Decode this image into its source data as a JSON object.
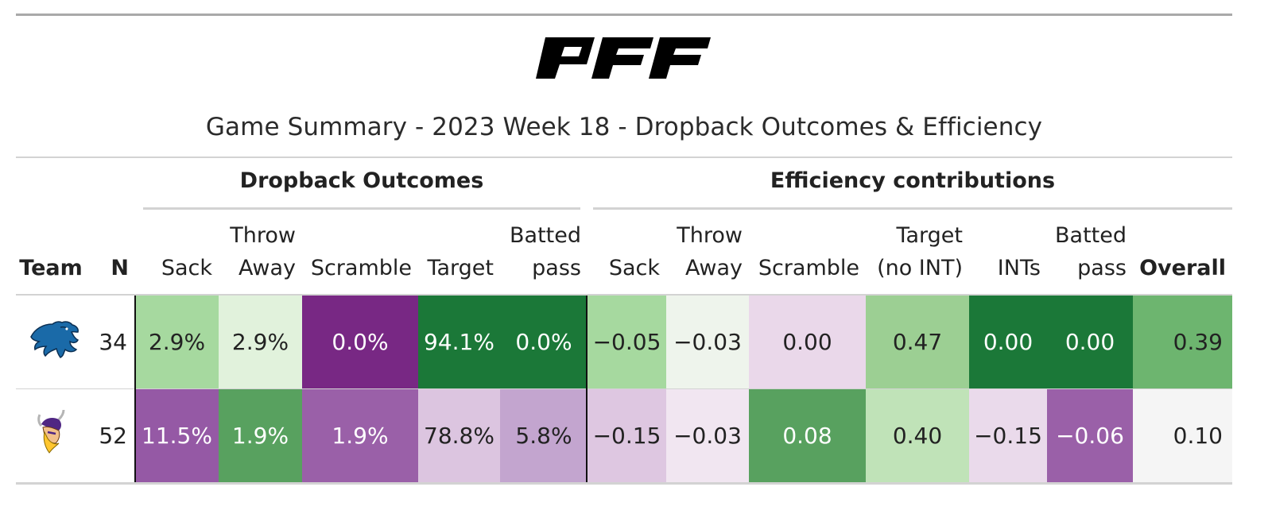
{
  "logo_text": "PFF",
  "title": "Game Summary - 2023 Week 18 - Dropback Outcomes & Efficiency",
  "colors": {
    "green_dark": "#1b7838",
    "purple_dark": "#762a83"
  },
  "chart_data": {
    "type": "table",
    "spanners": [
      "Dropback Outcomes",
      "Efficiency contributions"
    ],
    "columns": [
      {
        "key": "team",
        "l1": "",
        "l2": "Team",
        "bold": true
      },
      {
        "key": "n",
        "l1": "",
        "l2": "N",
        "bold": true
      },
      {
        "key": "do_sack",
        "l1": "",
        "l2": "Sack"
      },
      {
        "key": "do_throwaway",
        "l1": "Throw",
        "l2": "Away"
      },
      {
        "key": "do_scramble",
        "l1": "",
        "l2": "Scramble"
      },
      {
        "key": "do_target",
        "l1": "",
        "l2": "Target"
      },
      {
        "key": "do_batted",
        "l1": "Batted",
        "l2": "pass"
      },
      {
        "key": "ec_sack",
        "l1": "",
        "l2": "Sack"
      },
      {
        "key": "ec_throwaway",
        "l1": "Throw",
        "l2": "Away"
      },
      {
        "key": "ec_scramble",
        "l1": "",
        "l2": "Scramble"
      },
      {
        "key": "ec_target",
        "l1": "Target",
        "l2": "(no INT)"
      },
      {
        "key": "ec_ints",
        "l1": "",
        "l2": "INTs"
      },
      {
        "key": "ec_batted",
        "l1": "Batted",
        "l2": "pass"
      },
      {
        "key": "ec_overall",
        "l1": "",
        "l2": "Overall",
        "bold": true
      }
    ],
    "rows": [
      {
        "team_logo": "detroit-lions-logo",
        "n": "34",
        "cells": [
          {
            "text": "2.9%",
            "bg": "#a6d99f",
            "fg": "#222222"
          },
          {
            "text": "2.9%",
            "bg": "#e1f2dc",
            "fg": "#222222"
          },
          {
            "text": "0.0%",
            "bg": "#782884",
            "fg": "#ffffff"
          },
          {
            "text": "94.1%",
            "bg": "#1b7838",
            "fg": "#ffffff"
          },
          {
            "text": "0.0%",
            "bg": "#1b7838",
            "fg": "#ffffff"
          },
          {
            "text": "−0.05",
            "bg": "#a6d99f",
            "fg": "#222222"
          },
          {
            "text": "−0.03",
            "bg": "#eef4ec",
            "fg": "#222222"
          },
          {
            "text": "0.00",
            "bg": "#ead8ea",
            "fg": "#222222"
          },
          {
            "text": "0.47",
            "bg": "#9ccf93",
            "fg": "#222222"
          },
          {
            "text": "0.00",
            "bg": "#1b7838",
            "fg": "#ffffff"
          },
          {
            "text": "0.00",
            "bg": "#1b7838",
            "fg": "#ffffff"
          },
          {
            "text": "0.39",
            "bg": "#6db56f",
            "fg": "#222222"
          }
        ]
      },
      {
        "team_logo": "minnesota-vikings-logo",
        "n": "52",
        "cells": [
          {
            "text": "11.5%",
            "bg": "#9559a5",
            "fg": "#ffffff"
          },
          {
            "text": "1.9%",
            "bg": "#58a15f",
            "fg": "#ffffff"
          },
          {
            "text": "1.9%",
            "bg": "#9a60a8",
            "fg": "#ffffff"
          },
          {
            "text": "78.8%",
            "bg": "#dcc5e0",
            "fg": "#222222"
          },
          {
            "text": "5.8%",
            "bg": "#c3a5cf",
            "fg": "#222222"
          },
          {
            "text": "−0.15",
            "bg": "#dec7e1",
            "fg": "#222222"
          },
          {
            "text": "−0.03",
            "bg": "#f1e6f1",
            "fg": "#222222"
          },
          {
            "text": "0.08",
            "bg": "#58a15f",
            "fg": "#ffffff"
          },
          {
            "text": "0.40",
            "bg": "#c0e3b8",
            "fg": "#222222"
          },
          {
            "text": "−0.15",
            "bg": "#eadaeb",
            "fg": "#222222"
          },
          {
            "text": "−0.06",
            "bg": "#9a60a8",
            "fg": "#ffffff"
          },
          {
            "text": "0.10",
            "bg": "#f5f5f5",
            "fg": "#222222"
          }
        ]
      }
    ]
  }
}
